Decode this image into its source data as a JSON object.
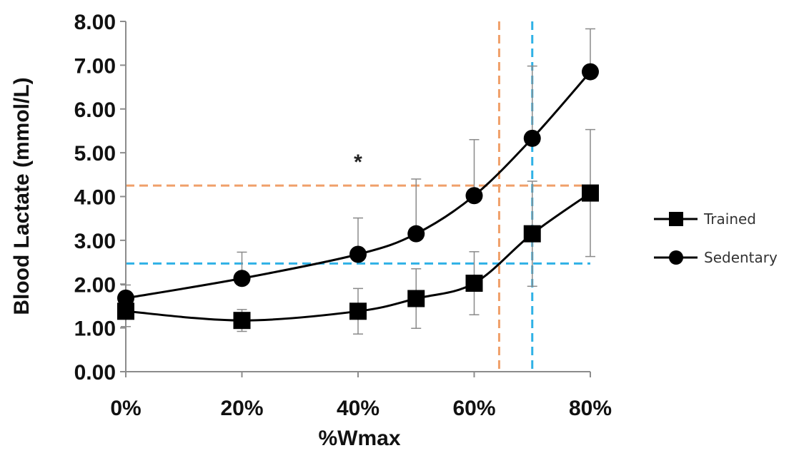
{
  "chart_data": {
    "type": "line",
    "title": "",
    "xlabel": "%Wmax",
    "ylabel": "Blood Lactate (mmol/L)",
    "x": [
      0,
      20,
      40,
      50,
      60,
      70,
      80
    ],
    "x_tick_values": [
      0,
      20,
      40,
      60,
      80
    ],
    "x_tick_labels": [
      "0%",
      "20%",
      "40%",
      "60%",
      "80%"
    ],
    "xlim": [
      0,
      80
    ],
    "y_tick_values": [
      0,
      1,
      2,
      3,
      4,
      5,
      6,
      7,
      8
    ],
    "y_tick_labels": [
      "0.00",
      "1.00",
      "2.00",
      "3.00",
      "4.00",
      "5.00",
      "6.00",
      "7.00",
      "8.00"
    ],
    "ylim": [
      0,
      8
    ],
    "grid": false,
    "legend_position": "right",
    "series": [
      {
        "name": "Trained",
        "marker": "square",
        "color": "#000000",
        "values": [
          1.38,
          1.17,
          1.38,
          1.67,
          2.02,
          3.15,
          4.08
        ],
        "error": [
          0.35,
          0.25,
          0.52,
          0.68,
          0.72,
          1.2,
          1.45
        ],
        "error_bar_style": "both"
      },
      {
        "name": "Sedentary",
        "marker": "circle",
        "color": "#000000",
        "values": [
          1.68,
          2.13,
          2.68,
          3.15,
          4.02,
          5.33,
          6.85
        ],
        "error": [
          0.3,
          0.6,
          0.83,
          1.25,
          1.28,
          1.65,
          0.98
        ],
        "error_bar_style": "upper"
      }
    ],
    "reference_lines": [
      {
        "orientation": "horizontal",
        "value": 4.25,
        "color": "#f0a06a",
        "style": "dashed"
      },
      {
        "orientation": "horizontal",
        "value": 2.47,
        "color": "#2fb1e6",
        "style": "dashed"
      },
      {
        "orientation": "vertical",
        "value": 64.3,
        "color": "#f0a06a",
        "style": "dashed"
      },
      {
        "orientation": "vertical",
        "value": 70,
        "color": "#2fb1e6",
        "style": "dashed"
      }
    ],
    "annotations": [
      {
        "text": "*",
        "x": 40,
        "y": 4.95
      }
    ]
  }
}
